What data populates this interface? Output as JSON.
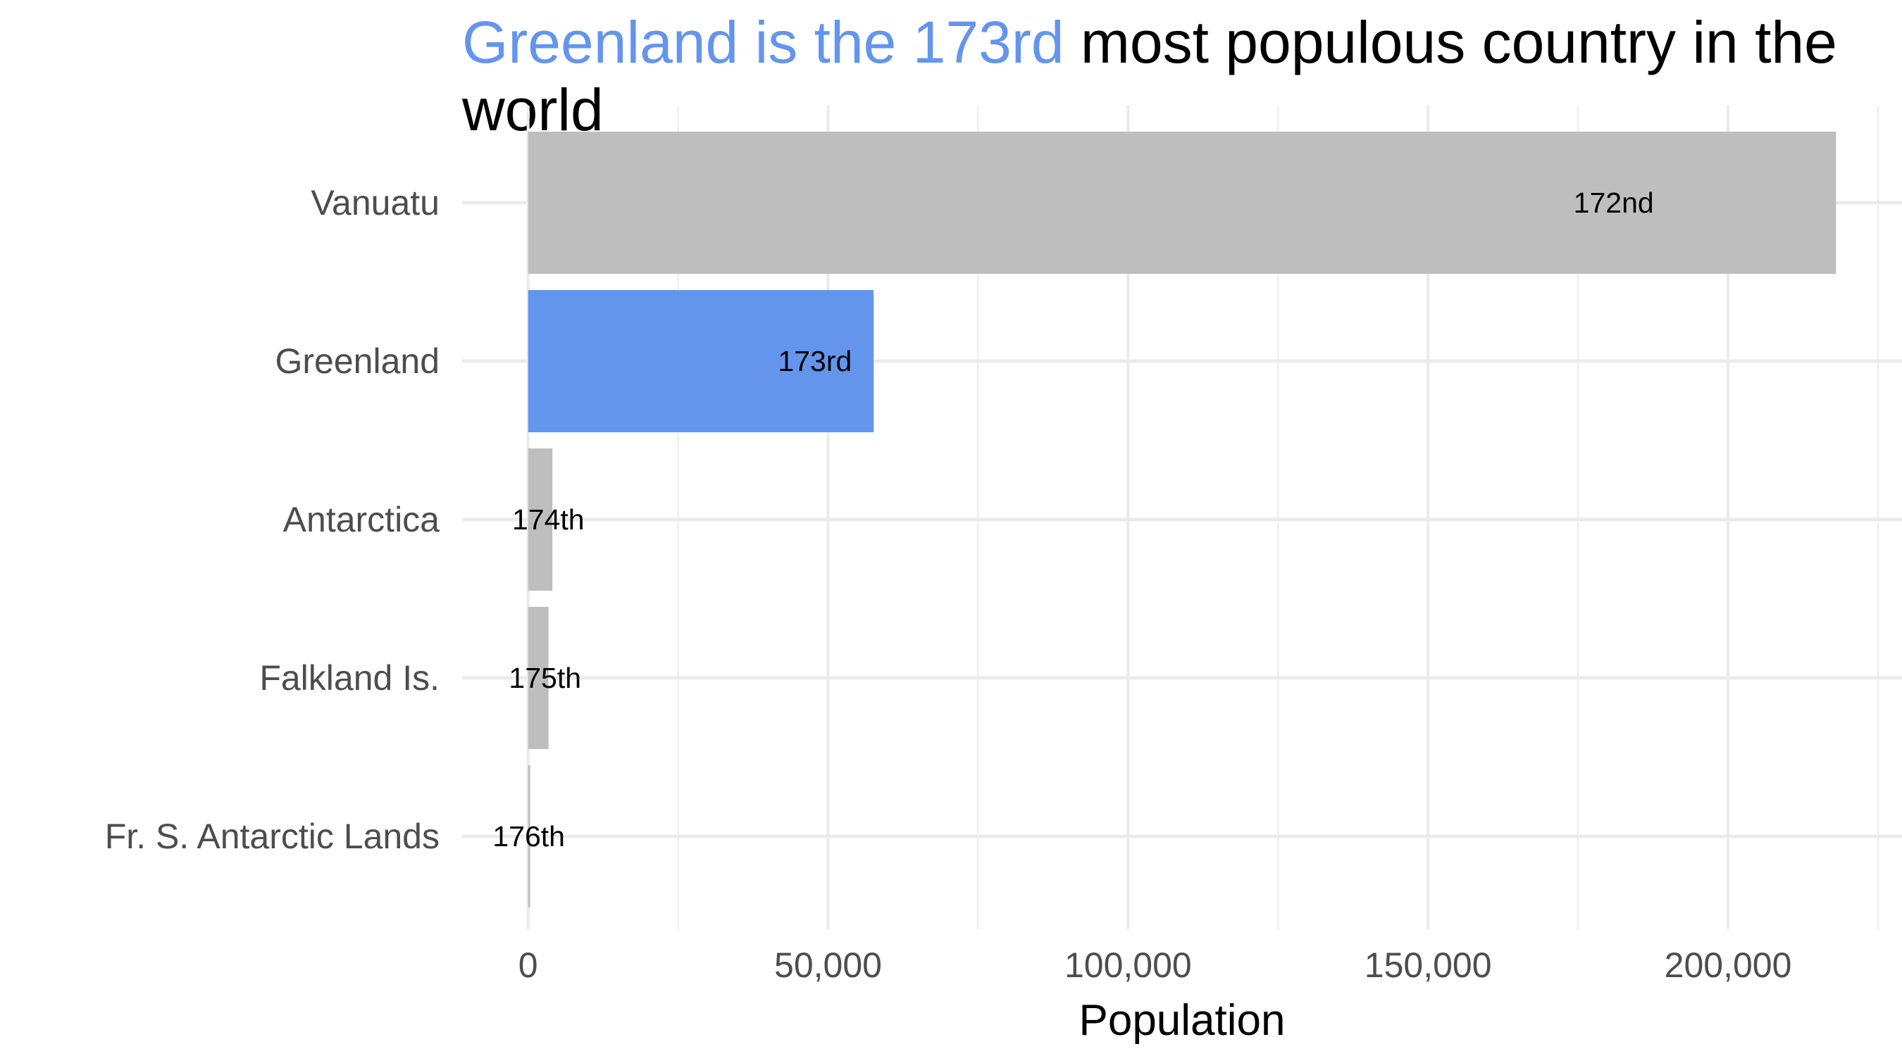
{
  "title": {
    "highlight": "Greenland is the 173rd",
    "rest": " most populous country in the world"
  },
  "colors": {
    "highlight": "#6495ED",
    "default_bar": "#BEBEBE",
    "grid": "#EBEBEB"
  },
  "chart_data": {
    "type": "bar",
    "orientation": "horizontal",
    "title": "Greenland is the 173rd most populous country in the world",
    "xlabel": "Population",
    "ylabel": "",
    "categories": [
      "Vanuatu",
      "Greenland",
      "Antarctica",
      "Falkland Is.",
      "Fr. S. Antarctic Lands"
    ],
    "values": [
      218000,
      57600,
      4050,
      3400,
      140
    ],
    "bar_labels": [
      "172nd",
      "173rd",
      "174th",
      "175th",
      "176th"
    ],
    "highlight_category": "Greenland",
    "xlim": [
      -11000,
      229000
    ],
    "x_ticks": [
      0,
      50000,
      100000,
      150000,
      200000
    ],
    "x_tick_labels": [
      "0",
      "50,000",
      "100,000",
      "150,000",
      "200,000"
    ],
    "grid": true,
    "legend": "none"
  }
}
